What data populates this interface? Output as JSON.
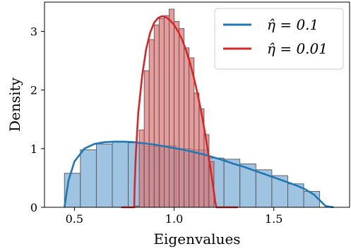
{
  "chart_data": {
    "type": "histogram",
    "xlabel": "Eigenvalues",
    "ylabel": "Density",
    "xlim": [
      0.35,
      1.88
    ],
    "ylim": [
      0,
      3.5
    ],
    "xticks": [
      0.5,
      1.0,
      1.5
    ],
    "xtick_labels": [
      "0.5",
      "1.0",
      "1.5"
    ],
    "yticks": [
      0,
      1,
      2,
      3
    ],
    "ytick_labels": [
      "0",
      "1",
      "2",
      "3"
    ],
    "legend_position": "top-right",
    "series": [
      {
        "name": "η̂ = 0.1",
        "legend_value": "0.1",
        "color": "#1f77b4",
        "bar_color": "#7fb0d8",
        "bins": [
          {
            "x0": 0.45,
            "x1": 0.53,
            "density": 0.58
          },
          {
            "x0": 0.53,
            "x1": 0.61,
            "density": 0.98
          },
          {
            "x0": 0.61,
            "x1": 0.69,
            "density": 1.08
          },
          {
            "x0": 0.69,
            "x1": 0.77,
            "density": 1.11
          },
          {
            "x0": 0.77,
            "x1": 0.85,
            "density": 1.1
          },
          {
            "x0": 0.85,
            "x1": 0.93,
            "density": 1.04
          },
          {
            "x0": 0.93,
            "x1": 1.01,
            "density": 1.05
          },
          {
            "x0": 1.01,
            "x1": 1.09,
            "density": 1.0
          },
          {
            "x0": 1.09,
            "x1": 1.17,
            "density": 0.98
          },
          {
            "x0": 1.17,
            "x1": 1.25,
            "density": 0.84
          },
          {
            "x0": 1.25,
            "x1": 1.33,
            "density": 0.82
          },
          {
            "x0": 1.33,
            "x1": 1.41,
            "density": 0.74
          },
          {
            "x0": 1.41,
            "x1": 1.49,
            "density": 0.64
          },
          {
            "x0": 1.49,
            "x1": 1.57,
            "density": 0.54
          },
          {
            "x0": 1.57,
            "x1": 1.65,
            "density": 0.4
          },
          {
            "x0": 1.65,
            "x1": 1.73,
            "density": 0.27
          }
        ],
        "curve_x": [
          0.45,
          0.47,
          0.5,
          0.55,
          0.6,
          0.65,
          0.7,
          0.75,
          0.8,
          0.85,
          0.9,
          0.95,
          1.0,
          1.05,
          1.1,
          1.15,
          1.2,
          1.25,
          1.3,
          1.35,
          1.4,
          1.45,
          1.5,
          1.55,
          1.6,
          1.65,
          1.7,
          1.73,
          1.76,
          1.8
        ],
        "curve_y": [
          0.0,
          0.45,
          0.78,
          1.0,
          1.08,
          1.11,
          1.12,
          1.12,
          1.11,
          1.09,
          1.07,
          1.04,
          1.01,
          0.98,
          0.94,
          0.9,
          0.85,
          0.8,
          0.74,
          0.69,
          0.63,
          0.57,
          0.51,
          0.45,
          0.39,
          0.32,
          0.22,
          0.12,
          0.02,
          0.0
        ]
      },
      {
        "name": "η̂ = 0.01",
        "legend_value": "0.01",
        "color": "#d62728",
        "bar_color": "#e07a7a",
        "bins": [
          {
            "x0": 0.8,
            "x1": 0.825,
            "density": 0.02
          },
          {
            "x0": 0.825,
            "x1": 0.85,
            "density": 1.32
          },
          {
            "x0": 0.85,
            "x1": 0.875,
            "density": 2.33
          },
          {
            "x0": 0.875,
            "x1": 0.9,
            "density": 2.86
          },
          {
            "x0": 0.9,
            "x1": 0.925,
            "density": 3.11
          },
          {
            "x0": 0.925,
            "x1": 0.95,
            "density": 3.22
          },
          {
            "x0": 0.95,
            "x1": 0.975,
            "density": 3.27
          },
          {
            "x0": 0.975,
            "x1": 1.0,
            "density": 3.38
          },
          {
            "x0": 1.0,
            "x1": 1.025,
            "density": 3.17
          },
          {
            "x0": 1.025,
            "x1": 1.05,
            "density": 3.05
          },
          {
            "x0": 1.05,
            "x1": 1.075,
            "density": 2.72
          },
          {
            "x0": 1.075,
            "x1": 1.1,
            "density": 2.55
          },
          {
            "x0": 1.1,
            "x1": 1.125,
            "density": 1.95
          },
          {
            "x0": 1.125,
            "x1": 1.15,
            "density": 1.68
          },
          {
            "x0": 1.15,
            "x1": 1.175,
            "density": 1.24
          },
          {
            "x0": 1.175,
            "x1": 1.2,
            "density": 0.78
          }
        ],
        "curve_x": [
          0.735,
          0.8,
          0.802,
          0.808,
          0.82,
          0.84,
          0.86,
          0.88,
          0.9,
          0.92,
          0.94,
          0.96,
          0.98,
          1.0,
          1.02,
          1.04,
          1.06,
          1.08,
          1.1,
          1.12,
          1.14,
          1.16,
          1.18,
          1.195,
          1.205,
          1.21,
          1.212,
          1.22,
          1.32
        ],
        "curve_y": [
          0.0,
          0.0,
          0.35,
          0.9,
          1.6,
          2.25,
          2.7,
          2.98,
          3.15,
          3.23,
          3.26,
          3.24,
          3.19,
          3.11,
          3.0,
          2.86,
          2.68,
          2.46,
          2.2,
          1.9,
          1.56,
          1.17,
          0.72,
          0.38,
          0.12,
          0.03,
          0.0,
          0.0,
          0.0
        ]
      }
    ]
  }
}
